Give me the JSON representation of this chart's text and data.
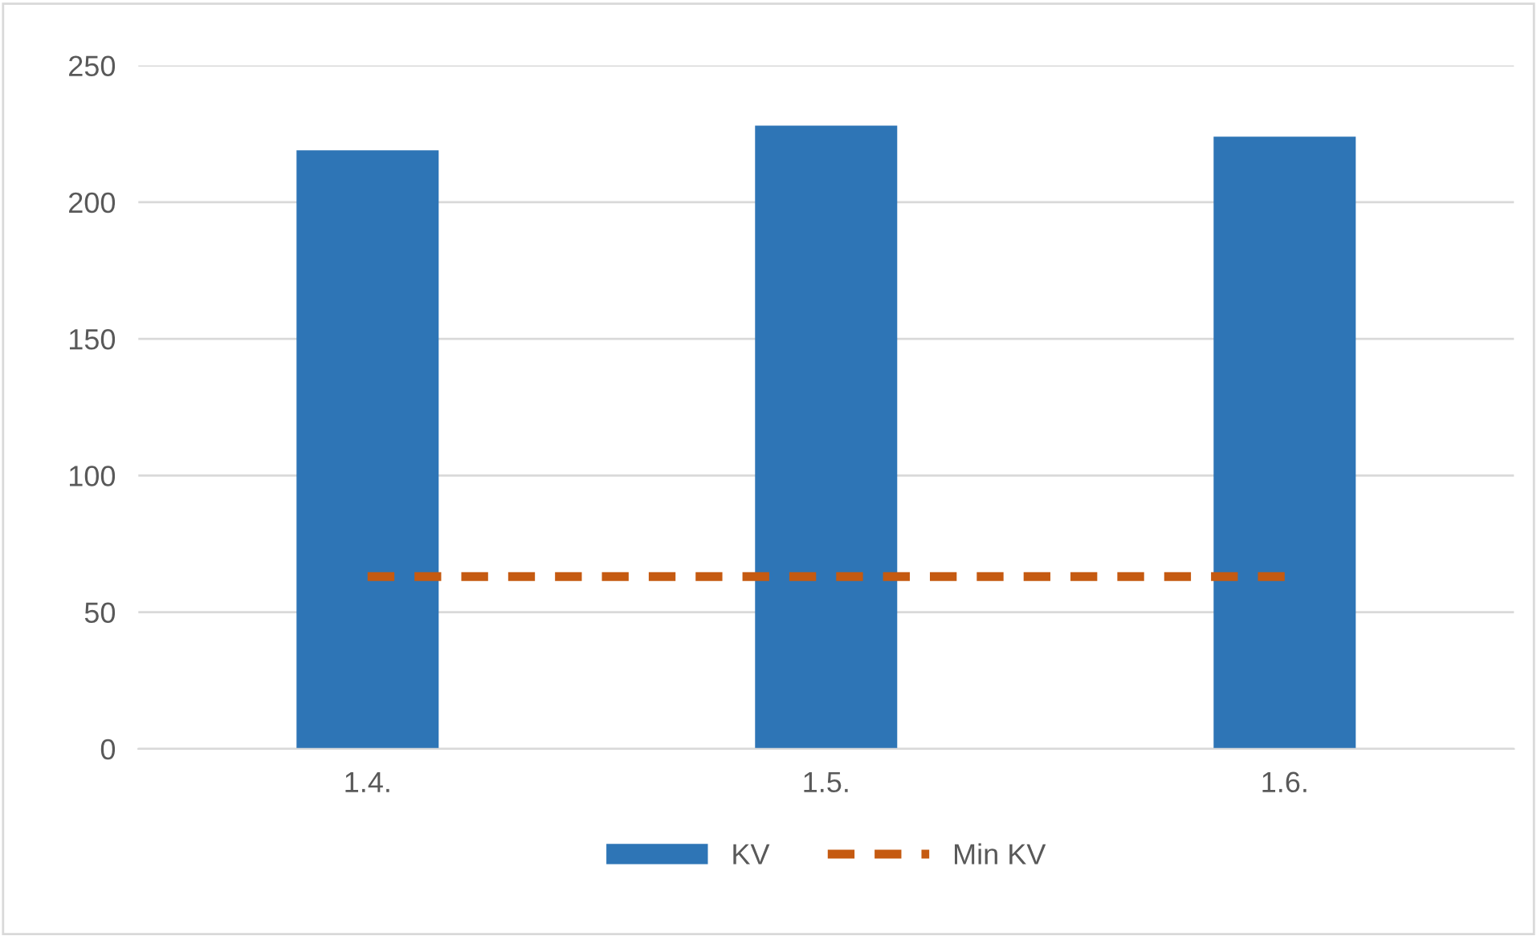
{
  "chart_data": {
    "type": "bar",
    "categories": [
      "1.4.",
      "1.5.",
      "1.6."
    ],
    "series": [
      {
        "name": "KV",
        "color": "#2e75b6",
        "values": [
          219,
          228,
          224
        ]
      },
      {
        "name": "Min KV",
        "type": "line",
        "color": "#c55a11",
        "line_style": "dashed",
        "values": [
          63,
          63,
          63
        ]
      }
    ],
    "ylim": [
      0,
      250
    ],
    "yticks": [
      0,
      50,
      100,
      150,
      200,
      250
    ],
    "grid": "y",
    "legend": "bottom"
  }
}
